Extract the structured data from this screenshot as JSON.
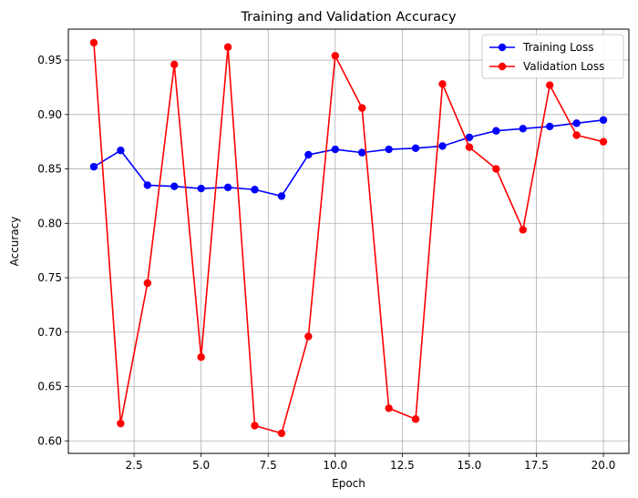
{
  "chart_data": {
    "type": "line",
    "title": "Training and Validation Accuracy",
    "xlabel": "Epoch",
    "ylabel": "Accuracy",
    "xlim": [
      0.05,
      20.95
    ],
    "ylim": [
      0.5885,
      0.9785
    ],
    "xticks": [
      2.5,
      5.0,
      7.5,
      10.0,
      12.5,
      15.0,
      17.5,
      20.0
    ],
    "xtick_labels": [
      "2.5",
      "5.0",
      "7.5",
      "10.0",
      "12.5",
      "15.0",
      "17.5",
      "20.0"
    ],
    "yticks": [
      0.6,
      0.65,
      0.7,
      0.75,
      0.8,
      0.85,
      0.9,
      0.95
    ],
    "ytick_labels": [
      "0.60",
      "0.65",
      "0.70",
      "0.75",
      "0.80",
      "0.85",
      "0.90",
      "0.95"
    ],
    "grid": true,
    "legend_position": "top-right",
    "x": [
      1,
      2,
      3,
      4,
      5,
      6,
      7,
      8,
      9,
      10,
      11,
      12,
      13,
      14,
      15,
      16,
      17,
      18,
      19,
      20
    ],
    "series": [
      {
        "name": "Training Loss",
        "color": "#0000ff",
        "values": [
          0.852,
          0.867,
          0.835,
          0.834,
          0.832,
          0.833,
          0.831,
          0.825,
          0.863,
          0.868,
          0.865,
          0.868,
          0.869,
          0.871,
          0.879,
          0.885,
          0.887,
          0.889,
          0.892,
          0.895
        ]
      },
      {
        "name": "Validation Loss",
        "color": "#ff0000",
        "values": [
          0.966,
          0.616,
          0.745,
          0.946,
          0.677,
          0.962,
          0.614,
          0.607,
          0.696,
          0.954,
          0.906,
          0.63,
          0.62,
          0.928,
          0.87,
          0.85,
          0.794,
          0.927,
          0.881,
          0.875
        ]
      }
    ]
  }
}
